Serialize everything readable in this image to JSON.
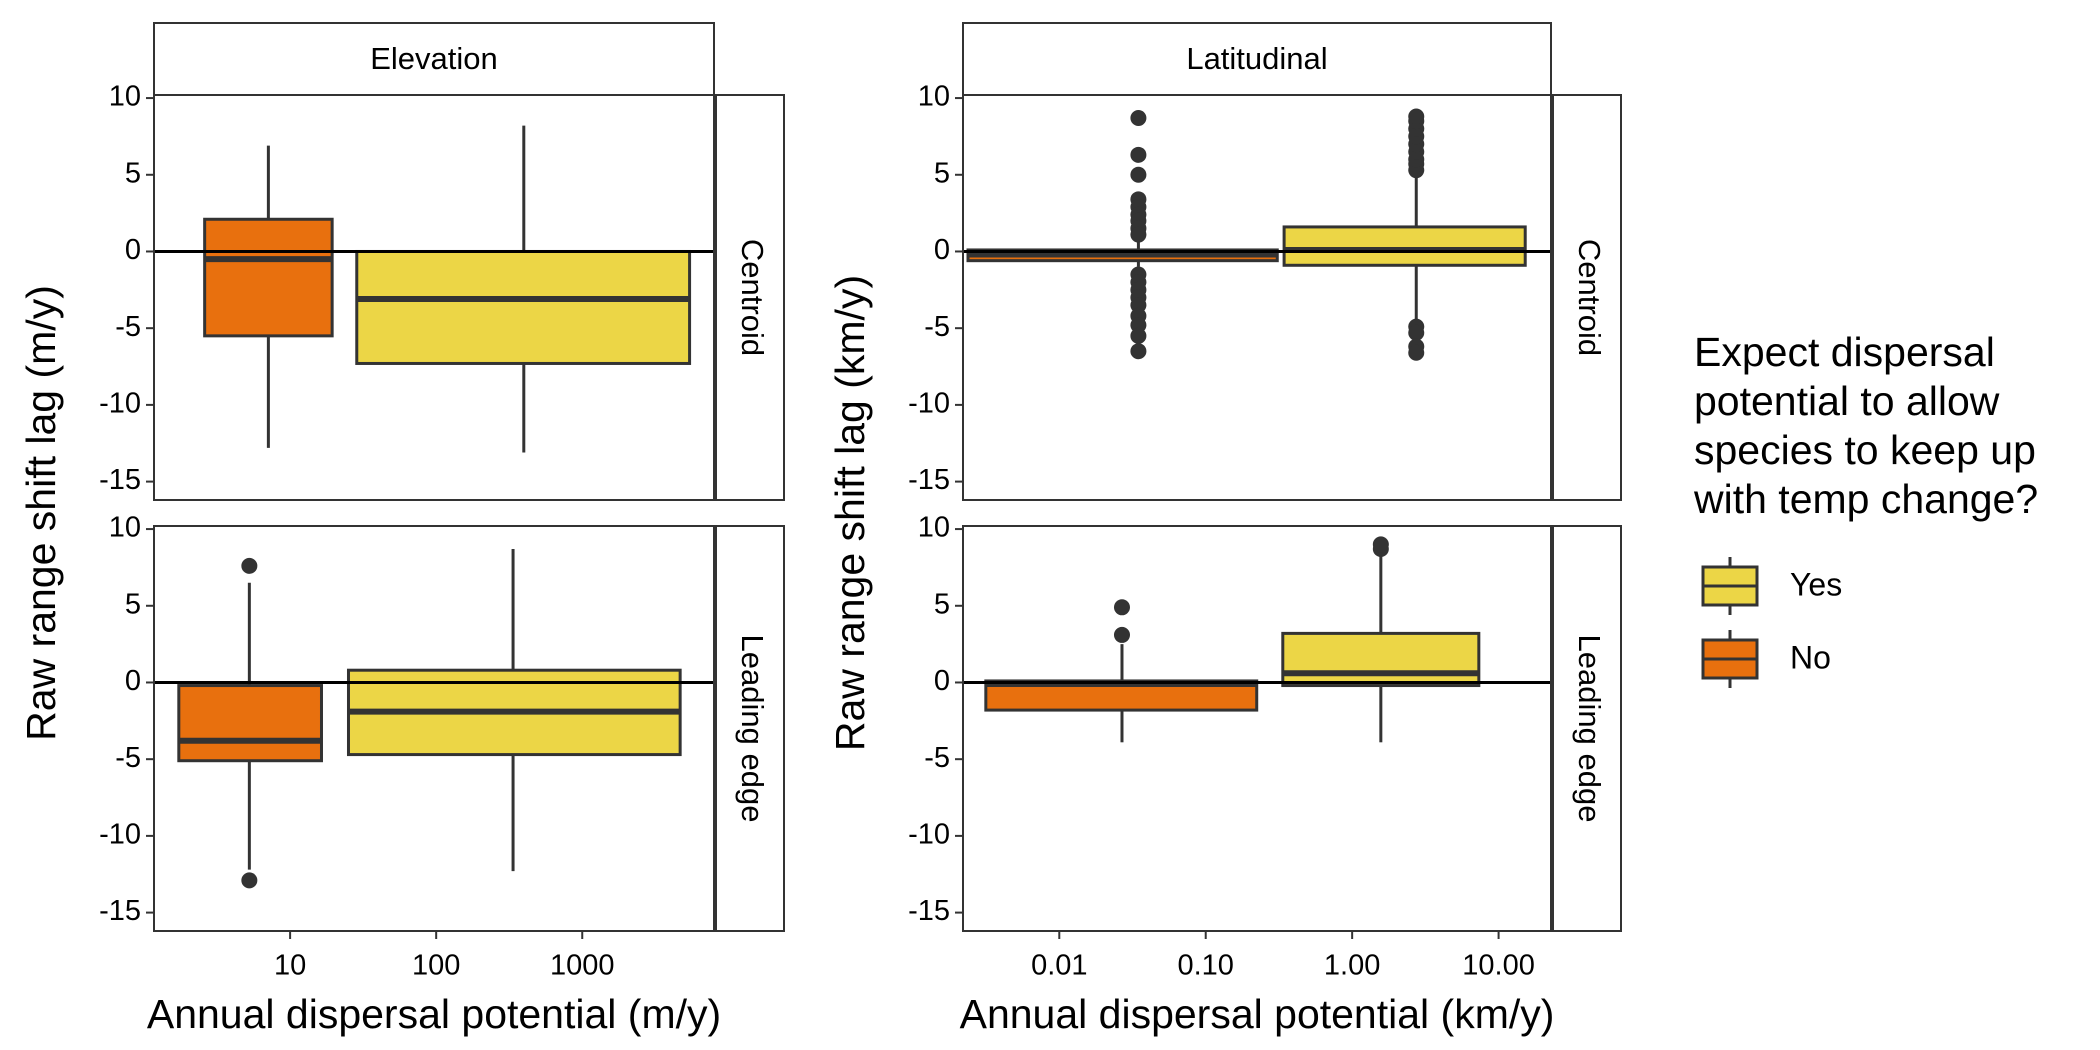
{
  "chart_data": [
    {
      "type": "box",
      "column_label": "Elevation",
      "row_label": "Centroid",
      "ylabel": "Raw range shift lag (m/y)",
      "xscale": "log",
      "xlim": [
        1.17,
        7980
      ],
      "ylim": [
        -16.2,
        10.2
      ],
      "yticks": [
        -15,
        -10,
        -5,
        0,
        5,
        10
      ],
      "reference_line": 0,
      "boxes": [
        {
          "color": "#e8700e",
          "x": 7.1,
          "xmin": 2.6,
          "xmax": 19.4,
          "low": -12.8,
          "q1": -5.5,
          "median": -0.5,
          "q3": 2.1,
          "high": 6.9,
          "outliers": []
        },
        {
          "color": "#ecd646",
          "x": 398,
          "xmin": 28.6,
          "xmax": 5430,
          "low": -13.1,
          "q1": -7.3,
          "median": -3.1,
          "q3": 0,
          "high": 8.2,
          "outliers": []
        }
      ]
    },
    {
      "type": "box",
      "row_label": "Leading edge",
      "xlabel": "Annual dispersal potential (m/y)",
      "xscale": "log",
      "xlim": [
        1.17,
        7980
      ],
      "xticks": [
        10,
        100,
        1000
      ],
      "ylim": [
        -16.2,
        10.2
      ],
      "yticks": [
        -15,
        -10,
        -5,
        0,
        5,
        10
      ],
      "reference_line": 0,
      "boxes": [
        {
          "color": "#e8700e",
          "x": 5.26,
          "xmin": 1.73,
          "xmax": 16.4,
          "low": -12.2,
          "q1": -5.1,
          "median": -3.8,
          "q3": -0.2,
          "high": 6.5,
          "outliers": [
            7.6,
            -12.9
          ]
        },
        {
          "color": "#ecd646",
          "x": 336,
          "xmin": 25.1,
          "xmax": 4680,
          "low": -12.3,
          "q1": -4.7,
          "median": -1.9,
          "q3": 0.8,
          "high": 8.7,
          "outliers": []
        }
      ]
    },
    {
      "type": "box",
      "column_label": "Latitudinal",
      "row_label": "Centroid",
      "ylabel": "Raw range shift lag (km/y)",
      "xscale": "log",
      "xlim": [
        0.0022,
        22.8
      ],
      "ylim": [
        -16.2,
        10.2
      ],
      "yticks": [
        -15,
        -10,
        -5,
        0,
        5,
        10
      ],
      "reference_line": 0,
      "boxes": [
        {
          "color": "#e8700e",
          "x": 0.0347,
          "xmin": 0.00238,
          "xmax": 0.308,
          "low": -1.0,
          "q1": -0.6,
          "median": -0.2,
          "q3": 0.1,
          "high": 0.8,
          "outliers": [
            8.7,
            6.3,
            5.0,
            3.4,
            2.9,
            2.4,
            2.0,
            1.5,
            1.1,
            -1.5,
            -2.0,
            -2.5,
            -3.0,
            -3.5,
            -4.2,
            -4.8,
            -5.5,
            -6.5
          ]
        },
        {
          "color": "#ecd646",
          "x": 2.74,
          "xmin": 0.343,
          "xmax": 15.2,
          "low": -4.6,
          "q1": -0.9,
          "median": 0.1,
          "q3": 1.6,
          "high": 5.0,
          "outliers": [
            5.3,
            5.7,
            6.0,
            6.5,
            7.0,
            7.5,
            8.0,
            8.5,
            8.8,
            -4.9,
            -5.3,
            -6.2,
            -6.6
          ]
        }
      ]
    },
    {
      "type": "box",
      "row_label": "Leading edge",
      "xlabel": "Annual dispersal potential (km/y)",
      "xscale": "log",
      "xlim": [
        0.0022,
        22.8
      ],
      "xticks": [
        0.01,
        {
          "value": 0.1,
          "label": "0.10"
        },
        {
          "value": 1,
          "label": "1.00"
        },
        {
          "value": 10,
          "label": "10.00"
        }
      ],
      "ylim": [
        -16.2,
        10.2
      ],
      "yticks": [
        -15,
        -10,
        -5,
        0,
        5,
        10
      ],
      "reference_line": 0,
      "boxes": [
        {
          "color": "#e8700e",
          "x": 0.0268,
          "xmin": 0.00315,
          "xmax": 0.223,
          "low": -3.9,
          "q1": -1.8,
          "median": -0.1,
          "q3": 0.1,
          "high": 2.5,
          "outliers": [
            3.1,
            4.9
          ]
        },
        {
          "color": "#ecd646",
          "x": 1.57,
          "xmin": 0.336,
          "xmax": 7.33,
          "low": -3.9,
          "q1": -0.2,
          "median": 0.6,
          "q3": 3.2,
          "high": 8.5,
          "outliers": [
            8.7,
            9.0
          ]
        }
      ]
    }
  ],
  "legend": {
    "title": "Expect dispersal potential to allow species to keep up with temp change?",
    "entries": [
      {
        "name": "Yes",
        "color": "#ecd646"
      },
      {
        "name": "No",
        "color": "#e8700e"
      }
    ]
  }
}
